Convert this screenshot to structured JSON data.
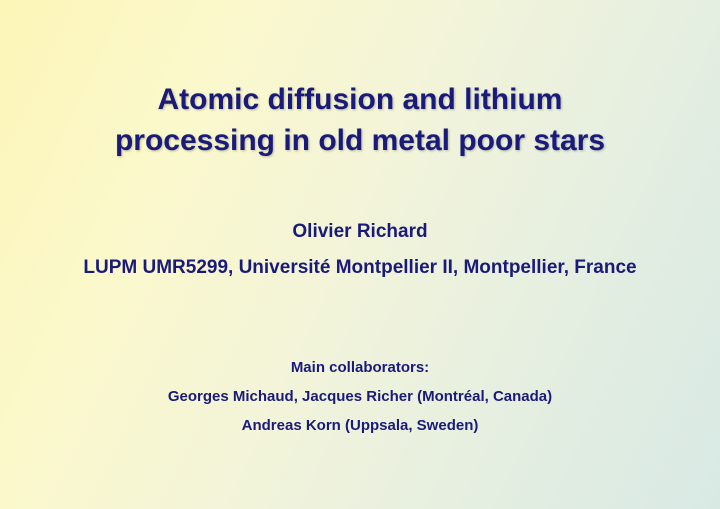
{
  "slide": {
    "title_line1": "Atomic diffusion and lithium",
    "title_line2": "processing in old metal poor stars",
    "author": "Olivier Richard",
    "affiliation": "LUPM UMR5299, Université Montpellier II, Montpellier, France",
    "collab_header": "Main collaborators:",
    "collab_line1": "Georges Michaud, Jacques Richer (Montréal, Canada)",
    "collab_line2": "Andreas Korn (Uppsala, Sweden)",
    "colors": {
      "text": "#1a1a7a",
      "bg_gradient_start": "#fcf6b8",
      "bg_gradient_end": "#d8e9e4"
    },
    "font_sizes": {
      "title": 30,
      "author": 19,
      "collab": 15
    }
  }
}
